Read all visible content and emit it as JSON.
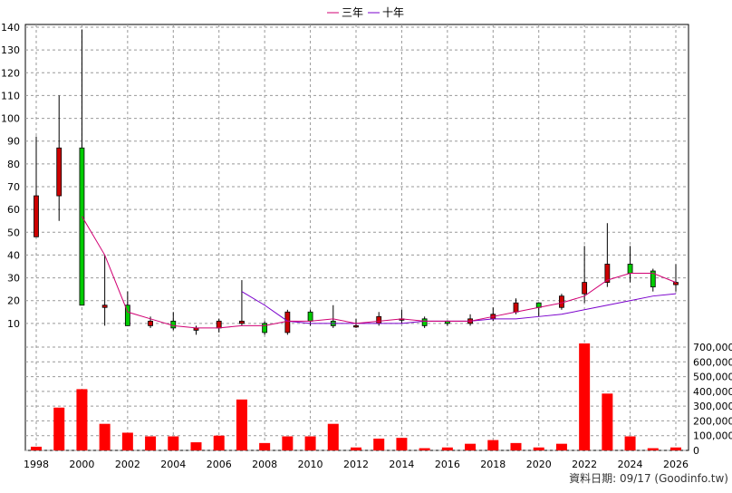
{
  "chart_data": {
    "type": "candlestick+bar",
    "legend": [
      {
        "label": "三年",
        "color": "#d10073"
      },
      {
        "label": "十年",
        "color": "#7a00cc"
      }
    ],
    "price_axis": {
      "ylim": [
        0,
        140
      ],
      "ticks": [
        10,
        20,
        30,
        40,
        50,
        60,
        70,
        80,
        90,
        100,
        110,
        120,
        130,
        140
      ]
    },
    "volume_axis": {
      "ylim": [
        0,
        700000
      ],
      "ticks": [
        "0",
        "100,000",
        "200,000",
        "300,000",
        "400,000",
        "500,000",
        "600,000",
        "700,000"
      ]
    },
    "x_axis": {
      "range": [
        1998,
        2026
      ],
      "ticks": [
        "1998",
        "2000",
        "2002",
        "2004",
        "2006",
        "2008",
        "2010",
        "2012",
        "2014",
        "2016",
        "2018",
        "2020",
        "2022",
        "2024",
        "2026"
      ]
    },
    "candles": [
      {
        "year": 1998,
        "open": 48,
        "close": 66,
        "high": 92,
        "low": 48
      },
      {
        "year": 1999,
        "open": 66,
        "close": 87,
        "high": 110,
        "low": 55
      },
      {
        "year": 2000,
        "open": 87,
        "close": 18,
        "high": 139,
        "low": 18
      },
      {
        "year": 2001,
        "open": 17,
        "close": 18,
        "high": 40,
        "low": 9
      },
      {
        "year": 2002,
        "open": 18,
        "close": 9,
        "high": 24,
        "low": 9
      },
      {
        "year": 2003,
        "open": 9,
        "close": 11,
        "high": 13,
        "low": 8
      },
      {
        "year": 2004,
        "open": 11,
        "close": 8,
        "high": 15,
        "low": 7
      },
      {
        "year": 2005,
        "open": 7,
        "close": 8,
        "high": 9,
        "low": 5
      },
      {
        "year": 2006,
        "open": 8,
        "close": 11,
        "high": 12,
        "low": 6
      },
      {
        "year": 2007,
        "open": 10,
        "close": 11,
        "high": 29,
        "low": 9
      },
      {
        "year": 2008,
        "open": 10,
        "close": 6,
        "high": 11,
        "low": 5
      },
      {
        "year": 2009,
        "open": 6,
        "close": 15,
        "high": 16,
        "low": 5
      },
      {
        "year": 2010,
        "open": 15,
        "close": 11,
        "high": 16,
        "low": 9
      },
      {
        "year": 2011,
        "open": 11,
        "close": 9,
        "high": 18,
        "low": 8
      },
      {
        "year": 2012,
        "open": 9,
        "close": 9,
        "high": 12,
        "low": 8
      },
      {
        "year": 2013,
        "open": 10,
        "close": 13,
        "high": 15,
        "low": 9
      },
      {
        "year": 2014,
        "open": 12,
        "close": 12,
        "high": 16,
        "low": 10
      },
      {
        "year": 2015,
        "open": 12,
        "close": 9,
        "high": 13,
        "low": 8
      },
      {
        "year": 2016,
        "open": 11,
        "close": 10,
        "high": 11,
        "low": 9
      },
      {
        "year": 2017,
        "open": 10,
        "close": 12,
        "high": 14,
        "low": 9
      },
      {
        "year": 2018,
        "open": 12,
        "close": 14,
        "high": 17,
        "low": 11
      },
      {
        "year": 2019,
        "open": 15,
        "close": 19,
        "high": 21,
        "low": 14
      },
      {
        "year": 2020,
        "open": 19,
        "close": 17,
        "high": 19,
        "low": 13
      },
      {
        "year": 2021,
        "open": 17,
        "close": 22,
        "high": 23,
        "low": 16
      },
      {
        "year": 2022,
        "open": 23,
        "close": 28,
        "high": 44,
        "low": 19
      },
      {
        "year": 2023,
        "open": 28,
        "close": 36,
        "high": 54,
        "low": 26
      },
      {
        "year": 2024,
        "open": 36,
        "close": 32,
        "high": 44,
        "low": 28
      },
      {
        "year": 2025,
        "open": 33,
        "close": 26,
        "high": 34,
        "low": 24
      },
      {
        "year": 2026,
        "open": 27,
        "close": 28,
        "high": 36,
        "low": 24
      }
    ],
    "ma3": {
      "years": [
        2000,
        2001,
        2002,
        2003,
        2004,
        2005,
        2006,
        2007,
        2008,
        2009,
        2010,
        2011,
        2012,
        2013,
        2014,
        2015,
        2016,
        2017,
        2018,
        2019,
        2020,
        2021,
        2022,
        2023,
        2024,
        2025,
        2026
      ],
      "values": [
        57,
        40,
        15,
        12,
        9,
        8,
        8,
        9,
        9,
        11,
        11,
        12,
        10,
        11,
        12,
        11,
        11,
        11,
        13,
        15,
        17,
        19,
        22,
        29,
        32,
        32,
        28
      ]
    },
    "ma10": {
      "years": [
        2007,
        2008,
        2009,
        2010,
        2011,
        2012,
        2013,
        2014,
        2015,
        2016,
        2017,
        2018,
        2019,
        2020,
        2021,
        2022,
        2023,
        2024,
        2025,
        2026
      ],
      "values": [
        24,
        18,
        11,
        10,
        10,
        10,
        10,
        10,
        11,
        11,
        11,
        12,
        12,
        13,
        14,
        16,
        18,
        20,
        22,
        23
      ]
    },
    "volume": [
      {
        "year": 1998,
        "value": 25000
      },
      {
        "year": 1999,
        "value": 290000
      },
      {
        "year": 2000,
        "value": 415000
      },
      {
        "year": 2001,
        "value": 180000
      },
      {
        "year": 2002,
        "value": 120000
      },
      {
        "year": 2003,
        "value": 95000
      },
      {
        "year": 2004,
        "value": 95000
      },
      {
        "year": 2005,
        "value": 55000
      },
      {
        "year": 2006,
        "value": 100000
      },
      {
        "year": 2007,
        "value": 345000
      },
      {
        "year": 2008,
        "value": 50000
      },
      {
        "year": 2009,
        "value": 95000
      },
      {
        "year": 2010,
        "value": 95000
      },
      {
        "year": 2011,
        "value": 180000
      },
      {
        "year": 2012,
        "value": 20000
      },
      {
        "year": 2013,
        "value": 80000
      },
      {
        "year": 2014,
        "value": 85000
      },
      {
        "year": 2015,
        "value": 15000
      },
      {
        "year": 2016,
        "value": 20000
      },
      {
        "year": 2017,
        "value": 45000
      },
      {
        "year": 2018,
        "value": 70000
      },
      {
        "year": 2019,
        "value": 50000
      },
      {
        "year": 2020,
        "value": 20000
      },
      {
        "year": 2021,
        "value": 45000
      },
      {
        "year": 2022,
        "value": 725000
      },
      {
        "year": 2023,
        "value": 385000
      },
      {
        "year": 2024,
        "value": 95000
      },
      {
        "year": 2025,
        "value": 15000
      },
      {
        "year": 2026,
        "value": 20000
      }
    ],
    "grid": true,
    "legend_position": "top-center",
    "footer": "資料日期: 09/17  (Goodinfo.tw)"
  },
  "colors": {
    "up": "#cc0000",
    "down": "#00cc00",
    "volume": "#ff0000",
    "ma3": "#d10073",
    "ma10": "#7a00cc",
    "grid": "#999999"
  }
}
